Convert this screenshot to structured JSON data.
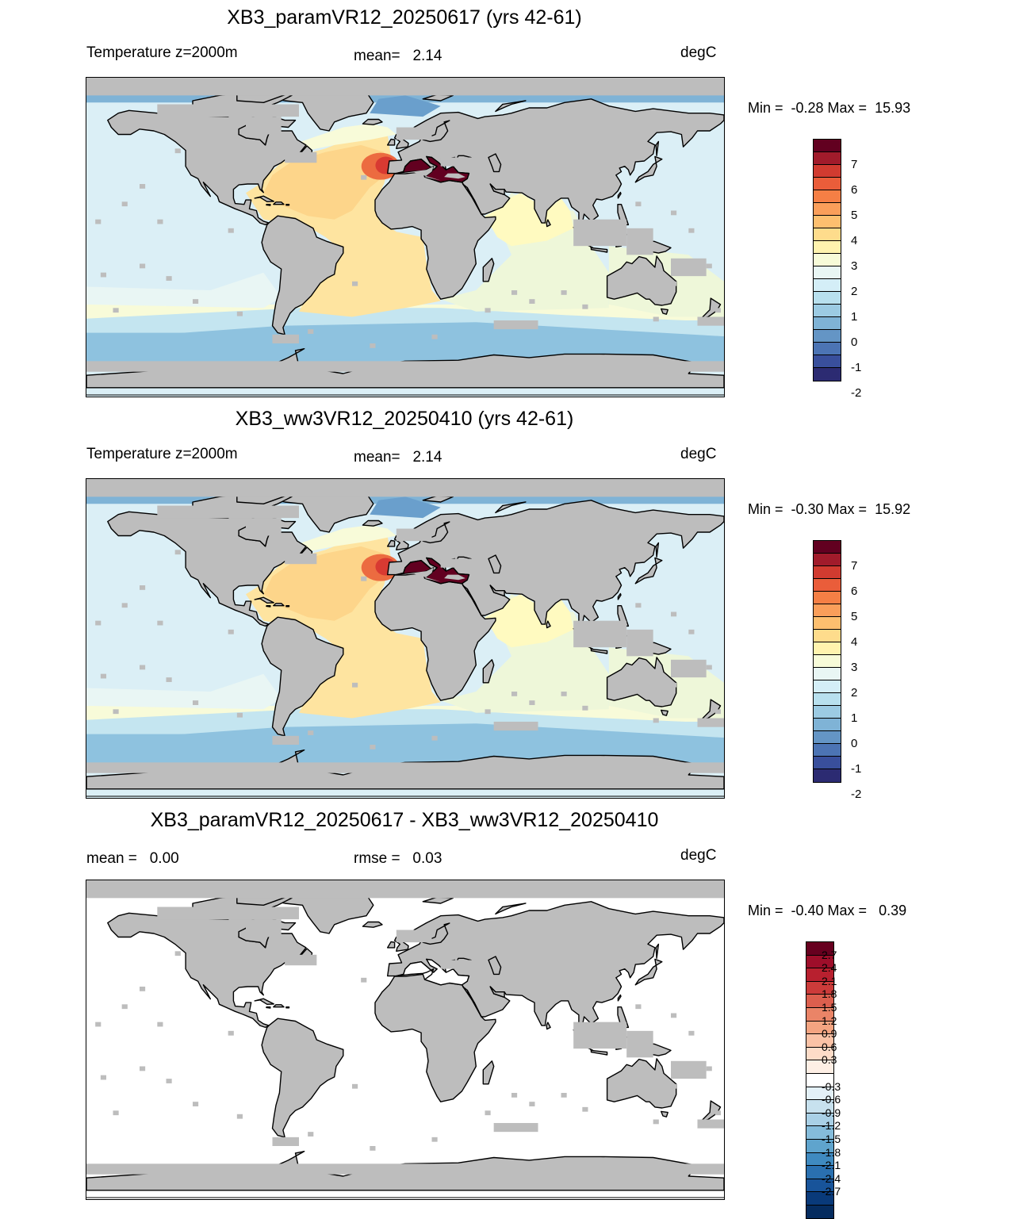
{
  "panels": [
    {
      "title": "XB3_paramVR12_20250617 (yrs 42-61)",
      "left_label": "Temperature z=2000m",
      "mid_label": "mean=   2.14",
      "units": "degC",
      "minmax": "Min =  -0.28 Max =  15.93",
      "mode": "field"
    },
    {
      "title": "XB3_ww3VR12_20250410 (yrs 42-61)",
      "left_label": "Temperature z=2000m",
      "mid_label": "mean=   2.14",
      "units": "degC",
      "minmax": "Min =  -0.30 Max =  15.92",
      "mode": "field"
    },
    {
      "title": "XB3_paramVR12_20250617 - XB3_ww3VR12_20250410",
      "left_label": "mean =   0.00",
      "mid_label": "rmse =   0.03",
      "units": "degC",
      "minmax": "Min =  -0.40 Max =   0.39",
      "mode": "diff"
    }
  ],
  "field_colorbar": {
    "colors": [
      "#620020",
      "#a11b2b",
      "#d13b30",
      "#ea5d3a",
      "#f57f45",
      "#fa9e5a",
      "#fdbf6f",
      "#fedc8c",
      "#fff3ae",
      "#f7fbd8",
      "#e9f6f4",
      "#d4eef7",
      "#b8e0ee",
      "#9ccbe3",
      "#7fb3d6",
      "#6495c5",
      "#4c74b4",
      "#394f9c",
      "#2c2b72"
    ],
    "labels": [
      "7",
      "6",
      "5",
      "4",
      "3",
      "2",
      "1",
      "0",
      "-1",
      "-2"
    ]
  },
  "diff_colorbar": {
    "colors": [
      "#67001f",
      "#9e0e2a",
      "#b8202f",
      "#cc3b3a",
      "#dc5f4e",
      "#ea8467",
      "#f4a481",
      "#fac2a6",
      "#fddcc8",
      "#feefe5",
      "#ffffff",
      "#e3f0f7",
      "#c7e1ee",
      "#a9d0e6",
      "#85bcdb",
      "#5fa4cd",
      "#3f8ac0",
      "#2a70b0",
      "#18549a",
      "#093a7a",
      "#052c5f"
    ],
    "labels": [
      "2.7",
      "2.4",
      "2.1",
      "1.8",
      "1.5",
      "1.2",
      "0.9",
      "0.6",
      "0.3",
      "-0.3",
      "-0.6",
      "-0.9",
      "-1.2",
      "-1.5",
      "-1.8",
      "-2.1",
      "-2.4",
      "-2.7"
    ]
  },
  "map_colors": {
    "land": "#bdbdbd",
    "coast": "#000000",
    "pacific": "#dbeff6",
    "pacific_shallow": "#e9f6f4",
    "indian": "#eef7d9",
    "indian_north": "#fffac0",
    "atlantic_south": "#fee4a0",
    "atlantic_north": "#fdd58a",
    "med_plume": "#ec6b40",
    "med_core": "#d83a32",
    "med_sea": "#620020",
    "southern_1": "#f8fbd9",
    "southern_2": "#c4e5f0",
    "southern_3": "#8ec2df",
    "arctic": "#7fb3d6",
    "arctic_deep": "#6a9fcc",
    "diff_ocean": "#ffffff"
  }
}
